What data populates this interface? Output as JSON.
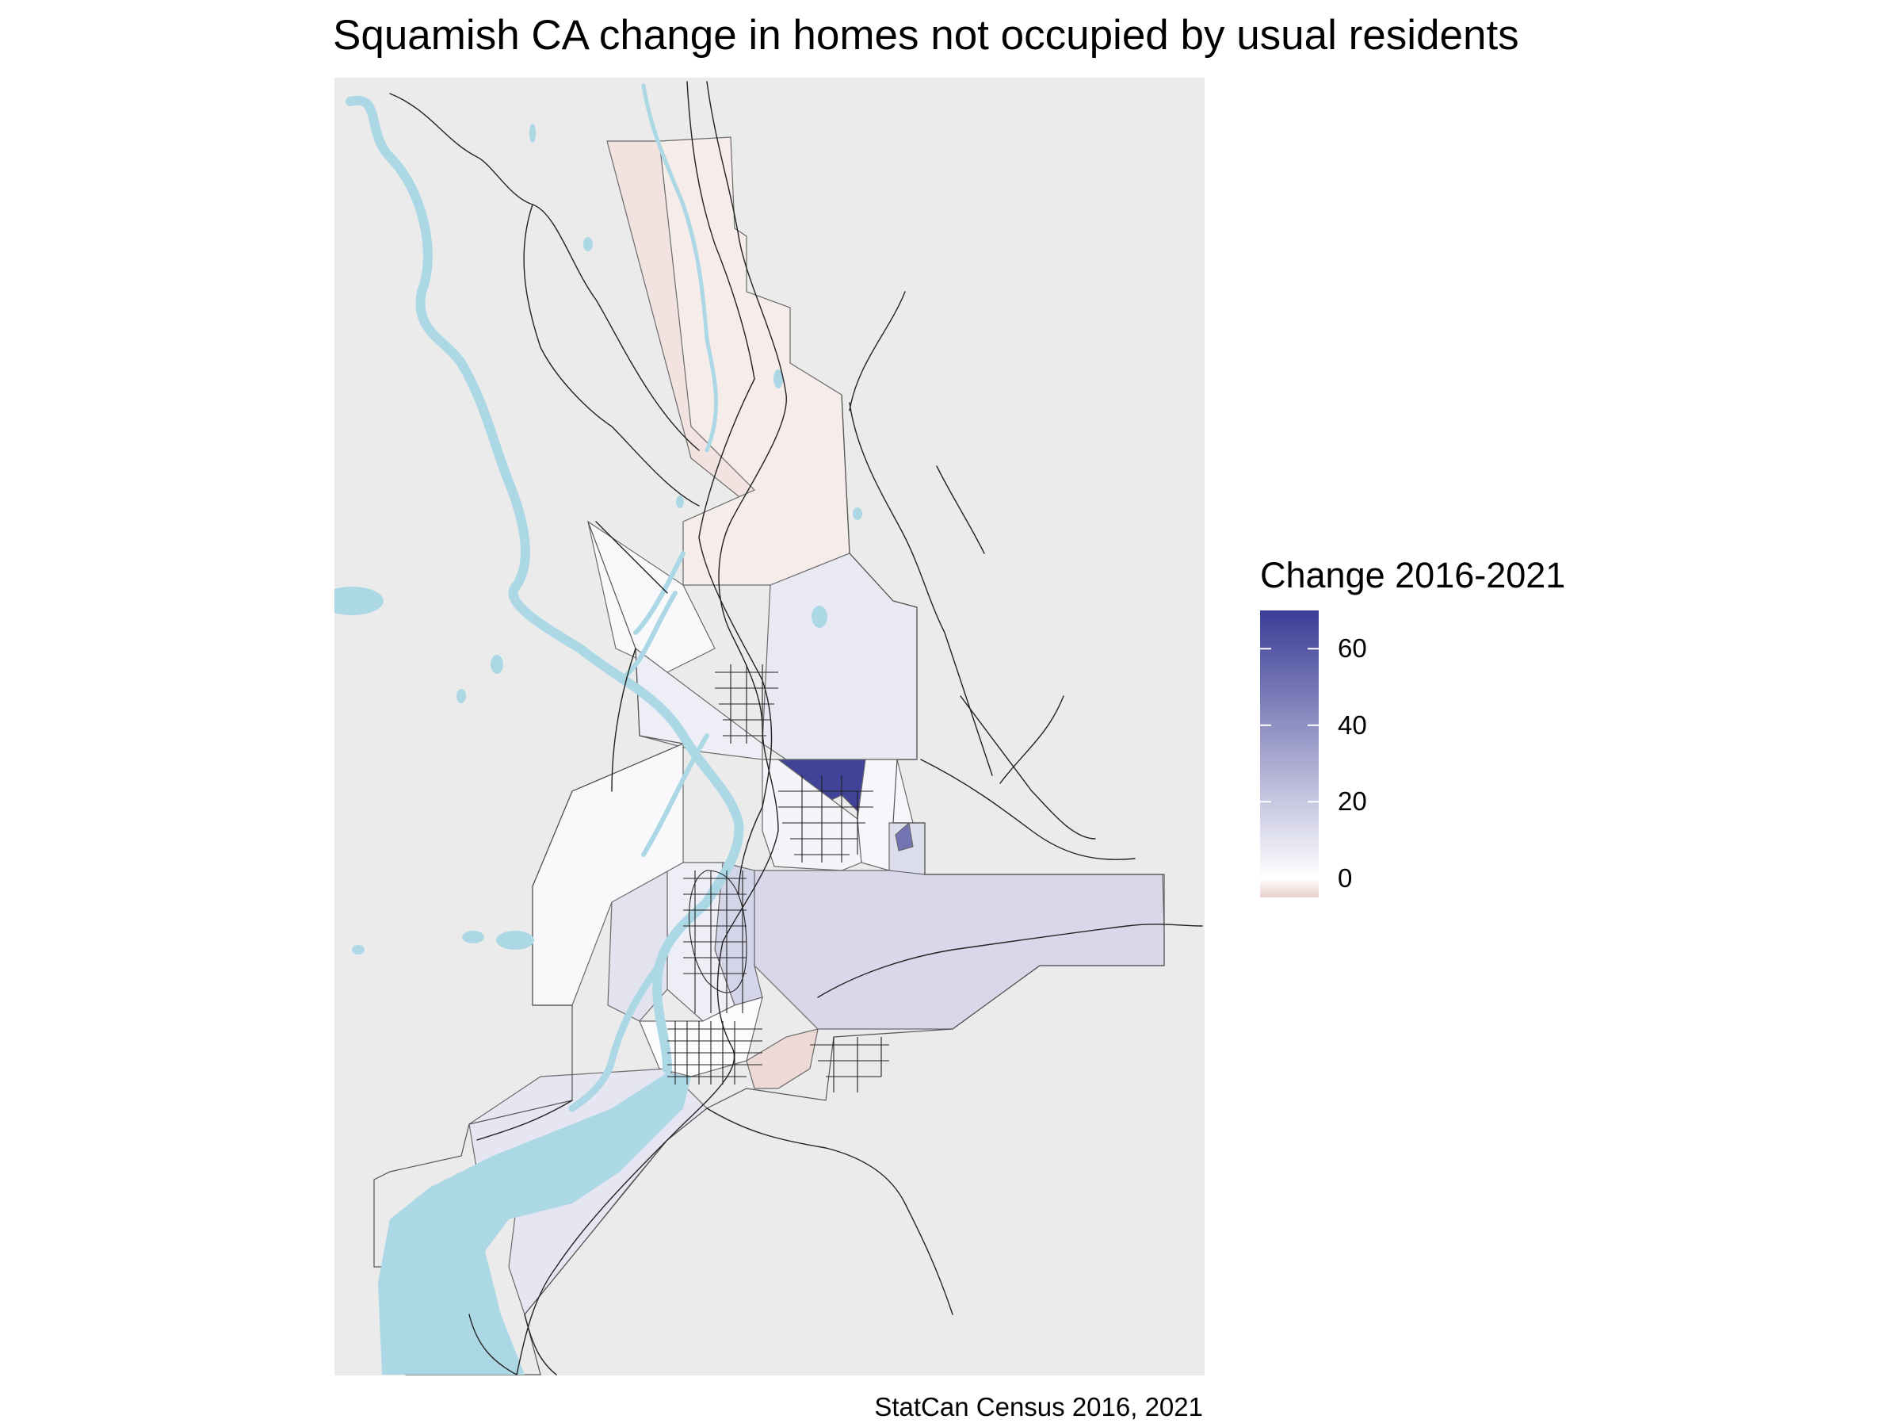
{
  "title": "Squamish CA change in homes not occupied by usual residents",
  "caption": "StatCan Census 2016, 2021",
  "legend": {
    "title": "Change 2016-2021",
    "min": -5,
    "max": 70,
    "ticks": [
      "60",
      "40",
      "20",
      "0"
    ],
    "tick_values": [
      60,
      40,
      20,
      0
    ],
    "color_low": "#e9d0cb",
    "color_mid": "#ffffff",
    "color_high": "#3b3d96"
  },
  "colors": {
    "background": "#ebebeb",
    "water": "#acd8e6",
    "roads": "#222222"
  },
  "chart_data": {
    "type": "choropleth",
    "title": "Squamish CA change in homes not occupied by usual residents",
    "legend_title": "Change 2016-2021",
    "legend_placement": "right",
    "scale_range": [
      -5,
      70
    ],
    "regions_change": [
      -3,
      -2,
      2,
      8,
      6,
      68,
      4,
      3,
      12,
      50,
      14,
      15,
      6,
      10,
      1,
      -4,
      2,
      9
    ]
  }
}
